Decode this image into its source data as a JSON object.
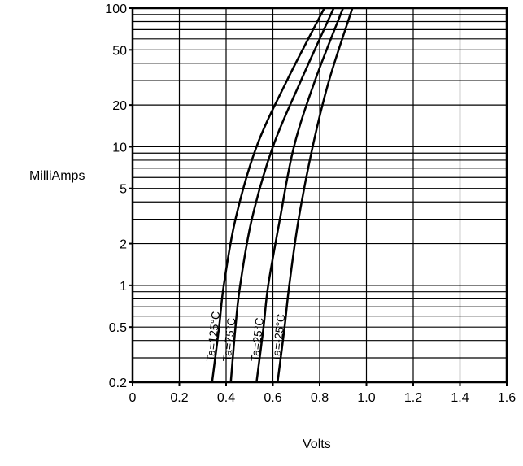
{
  "chart_data": {
    "type": "line",
    "xlabel": "Volts",
    "ylabel": "MilliAmps",
    "xlim": [
      0,
      1.6
    ],
    "ylim": [
      0.2,
      100
    ],
    "y_scale": "log",
    "grid": true,
    "x_ticks": [
      {
        "value": 0,
        "label": "0"
      },
      {
        "value": 0.2,
        "label": "0.2"
      },
      {
        "value": 0.4,
        "label": "0.4"
      },
      {
        "value": 0.6,
        "label": "0.6"
      },
      {
        "value": 0.8,
        "label": "0.8"
      },
      {
        "value": 1.0,
        "label": "1.0"
      },
      {
        "value": 1.2,
        "label": "1.2"
      },
      {
        "value": 1.4,
        "label": "1.4"
      },
      {
        "value": 1.6,
        "label": "1.6"
      }
    ],
    "y_ticks": [
      {
        "value": 0.2,
        "label": "0.2"
      },
      {
        "value": 0.5,
        "label": "0.5"
      },
      {
        "value": 1,
        "label": "1"
      },
      {
        "value": 2,
        "label": "2"
      },
      {
        "value": 5,
        "label": "5"
      },
      {
        "value": 10,
        "label": "10"
      },
      {
        "value": 20,
        "label": "20"
      },
      {
        "value": 50,
        "label": "50"
      },
      {
        "value": 100,
        "label": "100"
      }
    ],
    "series": [
      {
        "name": "Ta=125°C",
        "x": [
          0.34,
          0.37,
          0.39,
          0.44,
          0.53,
          0.66,
          0.82
        ],
        "y": [
          0.2,
          0.5,
          1,
          3,
          10,
          30,
          100
        ]
      },
      {
        "name": "Ta=75°C",
        "x": [
          0.42,
          0.44,
          0.46,
          0.51,
          0.6,
          0.72,
          0.86
        ],
        "y": [
          0.2,
          0.5,
          1,
          3,
          10,
          30,
          100
        ]
      },
      {
        "name": "Ta=25°C",
        "x": [
          0.53,
          0.56,
          0.58,
          0.63,
          0.69,
          0.78,
          0.9
        ],
        "y": [
          0.2,
          0.5,
          1,
          3,
          10,
          30,
          100
        ]
      },
      {
        "name": "Ta=-25°C",
        "x": [
          0.62,
          0.65,
          0.67,
          0.71,
          0.77,
          0.84,
          0.94
        ],
        "y": [
          0.2,
          0.5,
          1,
          3,
          10,
          30,
          100
        ]
      }
    ],
    "annotations": [
      "Ta=125°C",
      "Ta=75°C",
      "Ta=25°C",
      "Ta=-25°C"
    ],
    "colors": {
      "line": "#000000",
      "grid": "#000000",
      "background": "#ffffff"
    }
  }
}
